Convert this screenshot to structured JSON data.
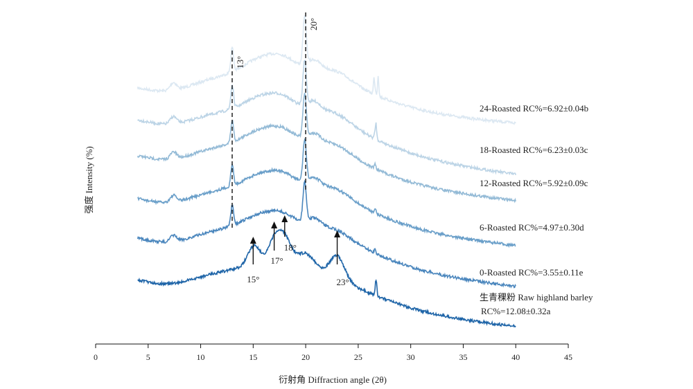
{
  "chart_data": {
    "type": "line",
    "title": "",
    "xlabel": "衍射角 Diffraction angle (2θ)",
    "ylabel": "强度 Intensity (%)",
    "xlim": [
      0,
      45
    ],
    "xticks": [
      "0",
      "5",
      "10",
      "15",
      "20",
      "25",
      "30",
      "35",
      "40",
      "45"
    ],
    "grid": false,
    "legend": "inline-right",
    "annotations": {
      "reference_lines": [
        {
          "x": 13,
          "label": "13°"
        },
        {
          "x": 20,
          "label": "20°"
        }
      ],
      "arrows": [
        {
          "x": 15,
          "label": "15°"
        },
        {
          "x": 17,
          "label": "17°"
        },
        {
          "x": 18,
          "label": "18°"
        },
        {
          "x": 23,
          "label": "23°"
        }
      ]
    },
    "series": [
      {
        "name": "24-Roasted RC%=6.92±0.04b",
        "color": "#dce8f2"
      },
      {
        "name": "18-Roasted RC%=6.23±0.03c",
        "color": "#bcd4e6"
      },
      {
        "name": "12-Roasted RC%=5.92±0.09c",
        "color": "#93bad6"
      },
      {
        "name": "6-Roasted RC%=4.97±0.30d",
        "color": "#6a9fc9"
      },
      {
        "name": "0-Roasted RC%=3.55±0.11e",
        "color": "#4a86bd"
      },
      {
        "name_line1": "生青稞粉 Raw highland barley",
        "name_line2": "RC%=12.08±0.32a",
        "color": "#1f65a8"
      }
    ]
  }
}
